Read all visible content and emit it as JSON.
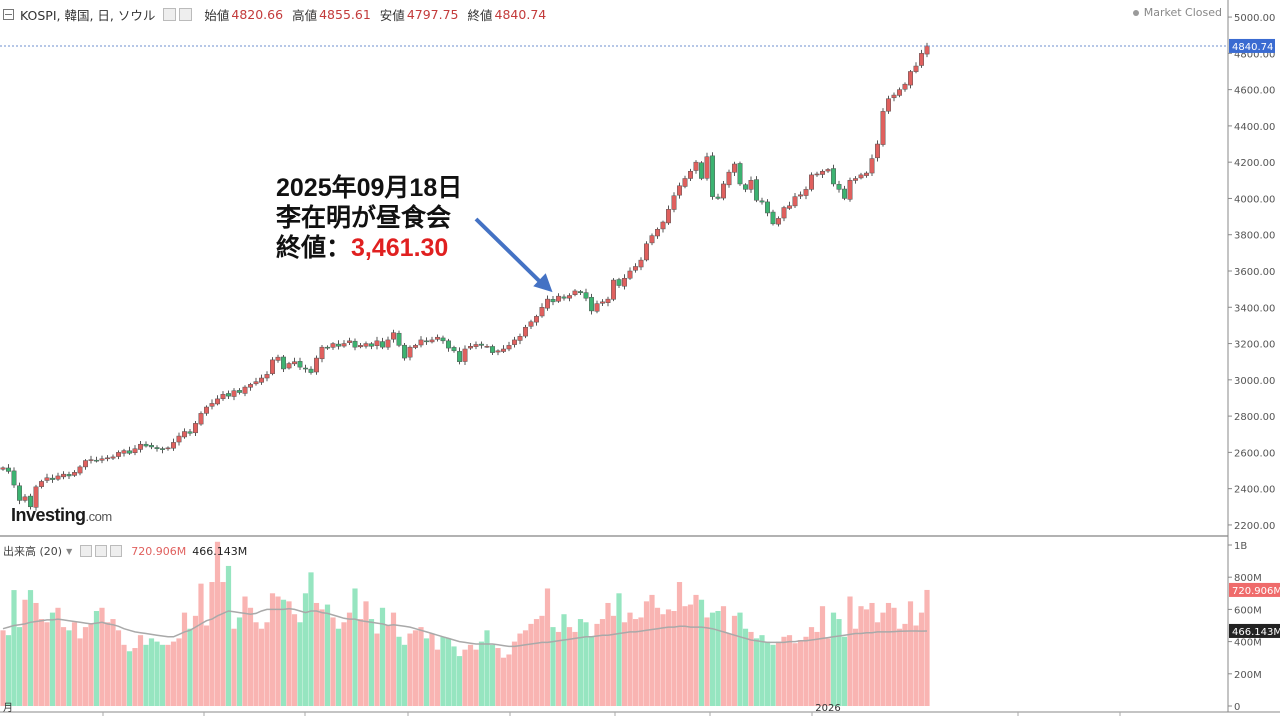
{
  "header": {
    "symbol": "KOSPI, 韓国, 日, ソウル",
    "open_label": "始値",
    "open": "4820.66",
    "high_label": "高値",
    "high": "4855.61",
    "low_label": "安値",
    "low": "4797.75",
    "close_label": "終値",
    "close": "4840.74",
    "market_status": "Market Closed"
  },
  "annotation": {
    "line1": "2025年09月18日",
    "line2": "李在明が昼食会",
    "line3_label": "終値：",
    "line3_value": "3,461.30"
  },
  "volume_header": {
    "label": "出来高 (20)",
    "volume": "720.906M",
    "ma": "466.143M"
  },
  "logo": {
    "main": "Investing",
    "suffix": ".com"
  },
  "colors": {
    "up": "#e0605e",
    "down": "#3cb371",
    "up_vol": "#f9b4b2",
    "down_vol": "#96e5c0",
    "ma_line": "#a9a9a9",
    "price_line": "#6d8fcf",
    "arrow": "#4472c4"
  },
  "chart_data": {
    "type": "candlestick",
    "price_axis": {
      "ylim": [
        2150,
        5050
      ],
      "ticks": [
        2200,
        2400,
        2600,
        2800,
        3000,
        3200,
        3400,
        3600,
        3800,
        4000,
        4200,
        4400,
        4600,
        4800,
        5000
      ],
      "tick_labels": [
        "2200.00",
        "2400.00",
        "2600.00",
        "2800.00",
        "3000.00",
        "3200.00",
        "3400.00",
        "3600.00",
        "3800.00",
        "4000.00",
        "4200.00",
        "4400.00",
        "4600.00",
        "4800.00",
        "5000.00"
      ],
      "last_price_label": "4840.74",
      "last_price": 4840.74
    },
    "volume_axis": {
      "ylim": [
        0,
        1000
      ],
      "ticks": [
        0,
        200,
        400,
        600,
        800,
        1000
      ],
      "tick_labels": [
        "0",
        "200M",
        "400M",
        "600M",
        "800M",
        "1B"
      ],
      "last_volume_label": "720.906M",
      "last_volume": 720.906,
      "last_ma_label": "466.143M",
      "last_ma": 466.143
    },
    "x_axis": {
      "labels": [
        {
          "text": "月",
          "index": 0
        },
        {
          "text": "2026",
          "index": 150
        }
      ]
    },
    "annotation_close": 3461.3,
    "closes": [
      2515,
      2495,
      2420,
      2335,
      2355,
      2300,
      2410,
      2440,
      2460,
      2450,
      2470,
      2480,
      2470,
      2490,
      2520,
      2555,
      2560,
      2555,
      2565,
      2570,
      2575,
      2600,
      2610,
      2595,
      2620,
      2645,
      2635,
      2630,
      2620,
      2615,
      2625,
      2655,
      2690,
      2715,
      2705,
      2760,
      2815,
      2850,
      2870,
      2895,
      2920,
      2910,
      2940,
      2930,
      2960,
      2975,
      2990,
      3010,
      3030,
      3110,
      3125,
      3060,
      3090,
      3100,
      3070,
      3060,
      3040,
      3120,
      3180,
      3175,
      3200,
      3185,
      3200,
      3215,
      3180,
      3190,
      3200,
      3185,
      3215,
      3180,
      3220,
      3260,
      3190,
      3120,
      3180,
      3190,
      3220,
      3210,
      3220,
      3235,
      3215,
      3175,
      3160,
      3100,
      3170,
      3185,
      3195,
      3190,
      3185,
      3150,
      3160,
      3170,
      3190,
      3220,
      3240,
      3290,
      3320,
      3350,
      3400,
      3445,
      3430,
      3461.3,
      3450,
      3465,
      3490,
      3480,
      3450,
      3380,
      3420,
      3430,
      3445,
      3550,
      3520,
      3560,
      3600,
      3625,
      3660,
      3750,
      3795,
      3830,
      3870,
      3940,
      4015,
      4070,
      4110,
      4150,
      4200,
      4110,
      4230,
      4010,
      4000,
      4080,
      4145,
      4190,
      4080,
      4050,
      4100,
      3990,
      3980,
      3920,
      3860,
      3890,
      3950,
      3960,
      4010,
      4020,
      4050,
      4130,
      4135,
      4150,
      4160,
      4080,
      4050,
      4000,
      4100,
      4110,
      4130,
      4140,
      4220,
      4300,
      4480,
      4550,
      4570,
      4600,
      4630,
      4700,
      4730,
      4800,
      4840.74
    ],
    "volumes": [
      470,
      440,
      720,
      490,
      660,
      720,
      640,
      540,
      520,
      580,
      610,
      490,
      470,
      520,
      420,
      490,
      510,
      590,
      610,
      520,
      540,
      470,
      380,
      340,
      360,
      440,
      380,
      420,
      400,
      380,
      380,
      400,
      420,
      580,
      480,
      560,
      760,
      500,
      770,
      1020,
      770,
      870,
      480,
      550,
      680,
      610,
      520,
      480,
      520,
      700,
      680,
      660,
      650,
      570,
      520,
      700,
      830,
      640,
      600,
      630,
      550,
      480,
      520,
      580,
      730,
      540,
      650,
      540,
      450,
      610,
      500,
      580,
      430,
      380,
      450,
      470,
      490,
      420,
      450,
      350,
      430,
      420,
      370,
      310,
      350,
      380,
      350,
      400,
      470,
      380,
      360,
      300,
      320,
      400,
      450,
      470,
      510,
      540,
      560,
      730,
      490,
      460,
      570,
      490,
      460,
      540,
      520,
      430,
      510,
      540,
      640,
      560,
      700,
      520,
      580,
      540,
      550,
      650,
      690,
      610,
      570,
      600,
      590,
      770,
      620,
      630,
      690,
      660,
      550,
      580,
      590,
      620,
      450,
      560,
      580,
      480,
      460,
      420,
      440,
      400,
      380,
      400,
      430,
      440,
      390,
      410,
      430,
      490,
      460,
      620,
      420,
      580,
      540,
      430,
      680,
      480,
      620,
      600,
      640,
      520,
      580,
      640,
      610,
      480,
      510,
      650,
      500,
      580,
      720.906
    ],
    "volume_ma": [
      480,
      490,
      500,
      505,
      510,
      520,
      525,
      530,
      535,
      535,
      540,
      535,
      530,
      525,
      520,
      515,
      510,
      515,
      520,
      510,
      505,
      495,
      480,
      470,
      460,
      455,
      450,
      445,
      440,
      435,
      430,
      430,
      445,
      460,
      470,
      490,
      510,
      530,
      540,
      560,
      575,
      590,
      585,
      580,
      575,
      570,
      575,
      590,
      600,
      600,
      600,
      600,
      605,
      600,
      590,
      580,
      590,
      590,
      580,
      575,
      565,
      555,
      545,
      540,
      540,
      530,
      525,
      520,
      515,
      510,
      500,
      505,
      500,
      495,
      490,
      480,
      470,
      460,
      450,
      440,
      430,
      420,
      410,
      400,
      395,
      390,
      385,
      385,
      385,
      385,
      380,
      375,
      370,
      370,
      375,
      380,
      385,
      390,
      395,
      395,
      400,
      405,
      410,
      415,
      420,
      425,
      430,
      430,
      435,
      440,
      440,
      445,
      450,
      455,
      460,
      460,
      465,
      470,
      475,
      480,
      485,
      490,
      490,
      495,
      495,
      490,
      490,
      490,
      485,
      480,
      470,
      460,
      450,
      440,
      430,
      420,
      410,
      405,
      400,
      395,
      395,
      395,
      395,
      400,
      400,
      405,
      405,
      410,
      415,
      420,
      425,
      430,
      435,
      440,
      445,
      450,
      450,
      455,
      455,
      460,
      460,
      460,
      462,
      464,
      465,
      466,
      466,
      465,
      466.143
    ]
  }
}
